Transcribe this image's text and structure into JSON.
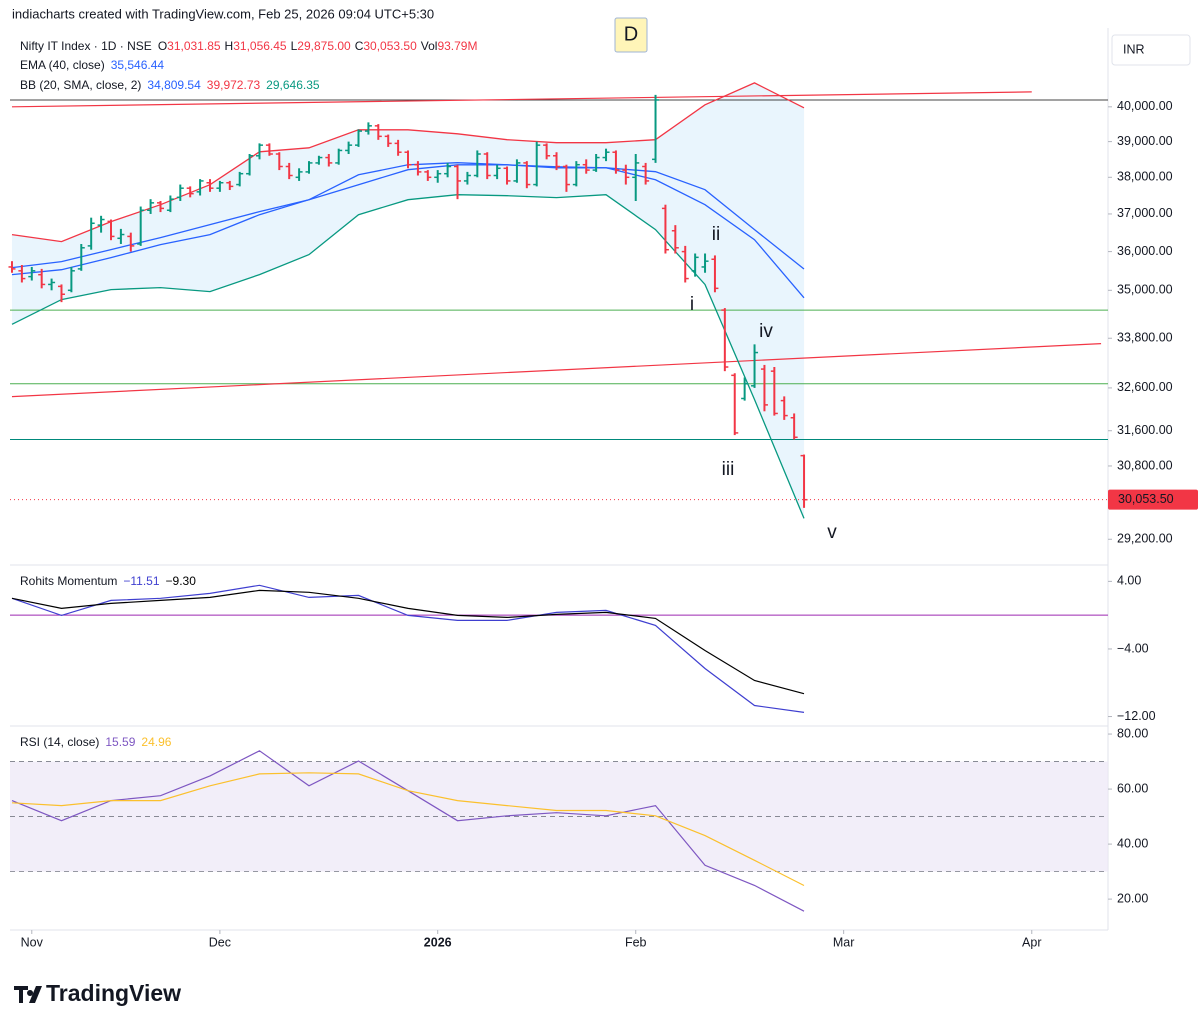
{
  "header": {
    "attribution": "indiacharts created with TradingView.com, Feb 25, 2026 09:04 UTC+5:30",
    "currency": "INR",
    "logo": "TradingView"
  },
  "chart_data": [
    {
      "type": "ohlc",
      "title": "Nifty IT Index · 1D · NSE",
      "log": true,
      "legend": [
        {
          "label": "O",
          "value": "31,031.85"
        },
        {
          "label": "H",
          "value": "31,056.45"
        },
        {
          "label": "L",
          "value": "29,875.00"
        },
        {
          "label": "C",
          "value": "30,053.50"
        },
        {
          "label": "Vol",
          "value": "93.79M"
        }
      ],
      "up_color": "#089981",
      "down_color": "#f23645",
      "xlim": [
        -0.2,
        110.7
      ],
      "ylim": [
        28700,
        42300
      ],
      "yticks": [
        {
          "value": 40000,
          "label": "40,000.00"
        },
        {
          "value": 39000,
          "label": "39,000.00"
        },
        {
          "value": 38000,
          "label": "38,000.00"
        },
        {
          "value": 37000,
          "label": "37,000.00"
        },
        {
          "value": 36000,
          "label": "36,000.00"
        },
        {
          "value": 35000,
          "label": "35,000.00"
        },
        {
          "value": 33800,
          "label": "33,800.00"
        },
        {
          "value": 32600,
          "label": "32,600.00"
        },
        {
          "value": 31600,
          "label": "31,600.00"
        },
        {
          "value": 30800,
          "label": "30,800.00"
        },
        {
          "value": 29200,
          "label": "29,200.00"
        }
      ],
      "last_label": "30,053.50",
      "x": [
        0,
        1,
        2,
        3,
        4,
        5,
        6,
        7,
        8,
        9,
        10,
        11,
        12,
        13,
        14,
        15,
        16,
        17,
        18,
        19,
        20,
        21,
        22,
        23,
        24,
        25,
        26,
        27,
        28,
        29,
        30,
        31,
        32,
        33,
        34,
        35,
        36,
        37,
        38,
        39,
        40,
        41,
        42,
        43,
        44,
        45,
        46,
        47,
        48,
        49,
        50,
        51,
        52,
        53,
        54,
        55,
        56,
        57,
        58,
        59,
        60,
        61,
        62,
        63,
        64,
        65,
        66,
        67,
        68,
        69,
        70,
        71,
        72,
        73,
        74,
        75,
        76,
        77,
        78,
        79,
        80
      ],
      "open": [
        35600,
        35500,
        35350,
        35400,
        35150,
        35100,
        35000,
        35550,
        36150,
        36700,
        36800,
        36350,
        36400,
        36200,
        37100,
        37300,
        37100,
        37450,
        37700,
        37600,
        37850,
        37700,
        37850,
        37800,
        38100,
        38600,
        38900,
        38650,
        38300,
        38000,
        38150,
        38400,
        38550,
        38400,
        38750,
        38900,
        39300,
        39450,
        39150,
        38950,
        38700,
        38350,
        38150,
        38000,
        38100,
        38300,
        37900,
        38050,
        38650,
        38050,
        38250,
        37900,
        38400,
        37800,
        38900,
        38600,
        38300,
        37800,
        38350,
        38200,
        38550,
        38700,
        38200,
        38000,
        38300,
        38500,
        37150,
        36550,
        36000,
        35500,
        35600,
        35800,
        34500,
        32900,
        32350,
        32650,
        33050,
        33000,
        32300,
        31900,
        31031.85
      ],
      "high": [
        35750,
        35650,
        35600,
        35550,
        35300,
        35150,
        35600,
        36200,
        36900,
        36950,
        36850,
        36600,
        36500,
        37200,
        37400,
        37350,
        37500,
        37800,
        37750,
        37950,
        37950,
        37900,
        37900,
        38150,
        38650,
        38950,
        38950,
        38700,
        38400,
        38250,
        38450,
        38600,
        38650,
        38800,
        39000,
        39350,
        39550,
        39500,
        39200,
        39050,
        38750,
        38450,
        38200,
        38200,
        38400,
        38350,
        38150,
        38750,
        38700,
        38350,
        38300,
        38500,
        38450,
        39000,
        38950,
        38700,
        38350,
        38450,
        38500,
        38650,
        38800,
        38750,
        38350,
        38650,
        38400,
        40350,
        37250,
        36700,
        36150,
        35950,
        35950,
        35900,
        34550,
        32950,
        32850,
        33650,
        33150,
        33100,
        32400,
        32000,
        31056.45
      ],
      "low": [
        35450,
        35200,
        35250,
        35050,
        35000,
        34700,
        34950,
        35500,
        36050,
        36500,
        36300,
        36200,
        36000,
        36150,
        37000,
        37050,
        37050,
        37350,
        37450,
        37500,
        37600,
        37600,
        37650,
        37750,
        38050,
        38500,
        38600,
        38200,
        37950,
        37900,
        38100,
        38350,
        38300,
        38350,
        38650,
        38850,
        39200,
        39050,
        38850,
        38600,
        38250,
        38050,
        37900,
        37850,
        38000,
        37400,
        37800,
        38000,
        37950,
        37950,
        37800,
        37850,
        37700,
        37750,
        38500,
        38200,
        37600,
        37750,
        38100,
        38150,
        38450,
        38100,
        37800,
        37350,
        37800,
        38400,
        35950,
        35950,
        35200,
        35350,
        35450,
        34950,
        33000,
        31500,
        32300,
        32600,
        32050,
        31950,
        31850,
        31400,
        29875
      ],
      "close": [
        35550,
        35300,
        35500,
        35150,
        35200,
        34900,
        35500,
        36100,
        36750,
        36850,
        36400,
        36450,
        36150,
        37100,
        37300,
        37150,
        37400,
        37700,
        37550,
        37900,
        37700,
        37850,
        37750,
        38100,
        38600,
        38900,
        38650,
        38300,
        38050,
        38150,
        38400,
        38550,
        38400,
        38750,
        38900,
        39300,
        39450,
        39150,
        38950,
        38700,
        38350,
        38150,
        38000,
        38100,
        38300,
        37900,
        38050,
        38650,
        38050,
        38250,
        37900,
        38400,
        37800,
        38900,
        38600,
        38300,
        37800,
        38350,
        38200,
        38550,
        38700,
        38200,
        38000,
        38400,
        37900,
        40200,
        36050,
        36100,
        35300,
        35850,
        35750,
        35050,
        33100,
        31550,
        32700,
        33450,
        32200,
        32000,
        31950,
        31450,
        30053.5
      ],
      "series": [
        {
          "name": "EMA (40, close)",
          "color": "#2962ff",
          "last_label": "35,546.44",
          "x": [
            0,
            5,
            10,
            15,
            20,
            25,
            30,
            35,
            40,
            45,
            50,
            55,
            60,
            65,
            70,
            75,
            80
          ],
          "values": [
            35582,
            35740,
            36052,
            36369,
            36713,
            37062,
            37386,
            37795,
            38210,
            38347,
            38347,
            38292,
            38265,
            38154,
            37658,
            36580,
            35546.44
          ]
        },
        {
          "name": "BB (20, SMA, close, 2)",
          "basis_color": "#2962ff",
          "upper_color": "#f23645",
          "lower_color": "#089981",
          "fill": "#e3f2fd",
          "last_labels": [
            "34,809.54",
            "39,972.73",
            "29,646.35"
          ],
          "x": [
            0,
            5,
            10,
            15,
            20,
            25,
            30,
            35,
            40,
            45,
            50,
            55,
            60,
            65,
            70,
            75,
            80
          ],
          "basis": [
            35403,
            35530,
            35844,
            36183,
            36447,
            36980,
            37386,
            38070,
            38347,
            38405,
            38347,
            38265,
            38265,
            37932,
            37250,
            36314,
            34809.54
          ],
          "upper": [
            36447,
            36263,
            36794,
            37250,
            37795,
            38713,
            38826,
            39338,
            39338,
            39223,
            39053,
            38968,
            38968,
            39053,
            40058,
            40703,
            39972.73
          ],
          "lower": [
            34145,
            34764,
            35018,
            35070,
            34967,
            35403,
            35921,
            36980,
            37386,
            37522,
            37495,
            37442,
            37522,
            36580,
            35147,
            32326,
            29646.35
          ]
        }
      ],
      "hlines": [
        {
          "value": 40200,
          "color": "#444444"
        },
        {
          "value": 34500,
          "color": "#4caf50"
        },
        {
          "value": 32700,
          "color": "#4caf50"
        },
        {
          "value": 31400,
          "color": "#00897b"
        }
      ],
      "trendlines": [
        {
          "x": [
            0,
            103
          ],
          "values": [
            40000,
            40437
          ],
          "color": "#f23645"
        },
        {
          "x": [
            0,
            110
          ],
          "values": [
            32394,
            33668
          ],
          "color": "#f23645"
        }
      ],
      "annotations": [
        "i",
        "ii",
        "iii",
        "iv",
        "v"
      ],
      "marker": "D"
    },
    {
      "type": "line",
      "title": "Rohits Momentum",
      "xlim": [
        -0.2,
        110.7
      ],
      "ylim": [
        -13,
        5.7
      ],
      "yticks": [
        {
          "value": 4,
          "label": "4.00"
        },
        {
          "value": -4,
          "label": "−4.00"
        },
        {
          "value": -12,
          "label": "−12.00"
        }
      ],
      "hlines": [
        {
          "value": 0,
          "color": "#9c27b0"
        }
      ],
      "series": [
        {
          "color": "#3f3fd0",
          "last_label": "−11.51",
          "x": [
            0,
            5,
            10,
            15,
            20,
            25,
            30,
            35,
            40,
            45,
            50,
            55,
            60,
            65,
            70,
            75,
            80
          ],
          "values": [
            1.99,
            -0.03,
            1.75,
            1.99,
            2.58,
            3.53,
            2.1,
            2.34,
            -0.03,
            -0.62,
            -0.62,
            0.33,
            0.56,
            -1.21,
            -6.31,
            -10.69,
            -11.51
          ]
        },
        {
          "color": "#000000",
          "last_label": "−9.30",
          "x": [
            0,
            5,
            10,
            15,
            20,
            25,
            30,
            35,
            40,
            45,
            50,
            55,
            60,
            65,
            70,
            75,
            80
          ],
          "values": [
            1.99,
            0.8,
            1.39,
            1.75,
            2.1,
            2.93,
            2.7,
            1.99,
            0.8,
            -0.03,
            -0.27,
            0.09,
            0.33,
            -0.38,
            -4.18,
            -7.73,
            -9.3
          ]
        }
      ]
    },
    {
      "type": "line",
      "title": "RSI (14, close)",
      "xlim": [
        -0.2,
        110.7
      ],
      "ylim": [
        9.5,
        82.2
      ],
      "yticks": [
        {
          "value": 20,
          "label": "20.00"
        },
        {
          "value": 40,
          "label": "40.00"
        },
        {
          "value": 60,
          "label": "60.00"
        },
        {
          "value": 80,
          "label": "80.00"
        }
      ],
      "bands": [
        70,
        50,
        30
      ],
      "band_fill": "#ede7f6",
      "xticks": [
        {
          "value": 2,
          "label": "Nov"
        },
        {
          "value": 21,
          "label": "Dec"
        },
        {
          "value": 43,
          "label": "2026"
        },
        {
          "value": 63,
          "label": "Feb"
        },
        {
          "value": 84,
          "label": "Mar"
        },
        {
          "value": 103,
          "label": "Apr"
        }
      ],
      "series": [
        {
          "color": "#7e57c2",
          "last_label": "15.59",
          "x": [
            0,
            5,
            10,
            15,
            20,
            25,
            30,
            35,
            40,
            45,
            50,
            55,
            60,
            65,
            70,
            75,
            80
          ],
          "values": [
            55.8,
            48.5,
            55.8,
            57.6,
            64.8,
            73.9,
            61.2,
            70.2,
            59.4,
            48.5,
            50.3,
            51.4,
            50.3,
            54.0,
            32.3,
            25.0,
            15.59
          ]
        },
        {
          "color": "#fbc02d",
          "last_label": "24.96",
          "x": [
            0,
            5,
            10,
            15,
            20,
            25,
            30,
            35,
            40,
            45,
            50,
            55,
            60,
            65,
            70,
            75,
            80
          ],
          "values": [
            55.0,
            54.0,
            55.8,
            55.8,
            61.2,
            65.5,
            65.9,
            65.5,
            59.4,
            55.8,
            54.0,
            52.2,
            52.2,
            50.3,
            43.1,
            34.1,
            24.96
          ]
        }
      ]
    }
  ]
}
